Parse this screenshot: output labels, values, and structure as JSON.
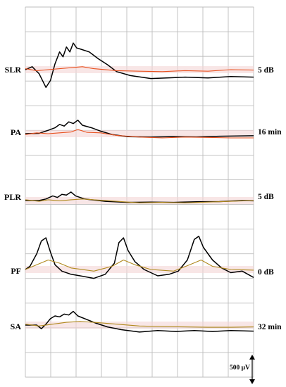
{
  "chart_data": {
    "type": "line",
    "title": "",
    "xlabel": "",
    "ylabel": "",
    "scale_bar_label": "500 μV",
    "grid": true,
    "colors": {
      "baseline_trace": "#e8501e",
      "baseline_trace_alt": "#b08a1e",
      "test_trace": "#000000",
      "grid": "#bdbdbd",
      "band": "#f3d6d6"
    },
    "panels": [
      {
        "label": "SLR",
        "condition": "5 dB",
        "baseline_color_key": "baseline_trace",
        "series": [
          {
            "role": "test",
            "points": [
              [
                0,
                0
              ],
              [
                0.03,
                0.15
              ],
              [
                0.06,
                -0.2
              ],
              [
                0.09,
                -0.9
              ],
              [
                0.11,
                -0.55
              ],
              [
                0.13,
                0.3
              ],
              [
                0.15,
                0.9
              ],
              [
                0.165,
                0.65
              ],
              [
                0.18,
                1.15
              ],
              [
                0.195,
                0.9
              ],
              [
                0.21,
                1.35
              ],
              [
                0.225,
                1.1
              ],
              [
                0.24,
                1.05
              ],
              [
                0.28,
                0.9
              ],
              [
                0.32,
                0.55
              ],
              [
                0.36,
                0.25
              ],
              [
                0.4,
                -0.1
              ],
              [
                0.46,
                -0.3
              ],
              [
                0.55,
                -0.45
              ],
              [
                0.62,
                -0.42
              ],
              [
                0.7,
                -0.38
              ],
              [
                0.8,
                -0.42
              ],
              [
                0.9,
                -0.35
              ],
              [
                1.0,
                -0.38
              ]
            ]
          },
          {
            "role": "baseline",
            "points": [
              [
                0,
                0.05
              ],
              [
                0.05,
                -0.05
              ],
              [
                0.1,
                0
              ],
              [
                0.2,
                0.1
              ],
              [
                0.25,
                0.15
              ],
              [
                0.3,
                0.05
              ],
              [
                0.4,
                -0.05
              ],
              [
                0.5,
                -0.08
              ],
              [
                0.6,
                -0.1
              ],
              [
                0.7,
                -0.05
              ],
              [
                0.8,
                -0.08
              ],
              [
                0.9,
                0
              ],
              [
                1.0,
                -0.02
              ]
            ]
          }
        ]
      },
      {
        "label": "PA",
        "condition": "16 min",
        "baseline_color_key": "baseline_trace",
        "series": [
          {
            "role": "test",
            "points": [
              [
                0,
                0
              ],
              [
                0.06,
                0.02
              ],
              [
                0.1,
                0.2
              ],
              [
                0.13,
                0.35
              ],
              [
                0.15,
                0.55
              ],
              [
                0.17,
                0.45
              ],
              [
                0.19,
                0.7
              ],
              [
                0.21,
                0.6
              ],
              [
                0.23,
                0.8
              ],
              [
                0.25,
                0.5
              ],
              [
                0.29,
                0.35
              ],
              [
                0.33,
                0.15
              ],
              [
                0.38,
                -0.05
              ],
              [
                0.45,
                -0.18
              ],
              [
                0.55,
                -0.2
              ],
              [
                0.65,
                -0.17
              ],
              [
                0.75,
                -0.19
              ],
              [
                0.85,
                -0.15
              ],
              [
                0.95,
                -0.13
              ],
              [
                1.0,
                -0.12
              ]
            ]
          },
          {
            "role": "baseline",
            "points": [
              [
                0,
                -0.05
              ],
              [
                0.05,
                0.05
              ],
              [
                0.1,
                0
              ],
              [
                0.15,
                0.05
              ],
              [
                0.2,
                0.1
              ],
              [
                0.23,
                0.25
              ],
              [
                0.27,
                0.08
              ],
              [
                0.33,
                0.05
              ],
              [
                0.4,
                -0.1
              ],
              [
                0.5,
                -0.2
              ],
              [
                0.6,
                -0.25
              ],
              [
                0.7,
                -0.2
              ],
              [
                0.8,
                -0.22
              ],
              [
                0.9,
                -0.25
              ],
              [
                1.0,
                -0.25
              ]
            ]
          }
        ]
      },
      {
        "label": "PLR",
        "condition": "5 dB",
        "baseline_color_key": "baseline_trace_alt",
        "series": [
          {
            "role": "test",
            "points": [
              [
                0,
                0
              ],
              [
                0.06,
                0
              ],
              [
                0.09,
                0.1
              ],
              [
                0.12,
                0.3
              ],
              [
                0.14,
                0.2
              ],
              [
                0.16,
                0.4
              ],
              [
                0.18,
                0.35
              ],
              [
                0.2,
                0.55
              ],
              [
                0.22,
                0.3
              ],
              [
                0.26,
                0.1
              ],
              [
                0.3,
                0.03
              ],
              [
                0.35,
                -0.05
              ],
              [
                0.45,
                -0.12
              ],
              [
                0.55,
                -0.1
              ],
              [
                0.65,
                -0.12
              ],
              [
                0.75,
                -0.08
              ],
              [
                0.85,
                -0.07
              ],
              [
                0.95,
                0
              ],
              [
                1.0,
                -0.02
              ]
            ]
          },
          {
            "role": "baseline",
            "points": [
              [
                0,
                0.05
              ],
              [
                0.06,
                -0.05
              ],
              [
                0.1,
                0.05
              ],
              [
                0.15,
                -0.02
              ],
              [
                0.2,
                0.05
              ],
              [
                0.25,
                0.1
              ],
              [
                0.3,
                0.05
              ],
              [
                0.4,
                -0.05
              ],
              [
                0.5,
                -0.15
              ],
              [
                0.6,
                -0.12
              ],
              [
                0.7,
                -0.15
              ],
              [
                0.8,
                -0.1
              ],
              [
                0.9,
                -0.05
              ],
              [
                1.0,
                0
              ]
            ]
          }
        ]
      },
      {
        "label": "PF",
        "condition": "0 dB",
        "baseline_color_key": "baseline_trace_alt",
        "series": [
          {
            "role": "test",
            "points": [
              [
                0,
                0
              ],
              [
                0.02,
                0.1
              ],
              [
                0.05,
                0.5
              ],
              [
                0.07,
                0.9
              ],
              [
                0.09,
                1.0
              ],
              [
                0.11,
                0.55
              ],
              [
                0.13,
                0.15
              ],
              [
                0.16,
                -0.05
              ],
              [
                0.2,
                -0.15
              ],
              [
                0.24,
                -0.2
              ],
              [
                0.3,
                -0.28
              ],
              [
                0.35,
                -0.15
              ],
              [
                0.39,
                0.2
              ],
              [
                0.41,
                0.85
              ],
              [
                0.43,
                1.0
              ],
              [
                0.45,
                0.6
              ],
              [
                0.48,
                0.25
              ],
              [
                0.52,
                0.0
              ],
              [
                0.58,
                -0.2
              ],
              [
                0.63,
                -0.15
              ],
              [
                0.67,
                -0.05
              ],
              [
                0.71,
                0.3
              ],
              [
                0.74,
                0.95
              ],
              [
                0.76,
                1.05
              ],
              [
                0.78,
                0.7
              ],
              [
                0.82,
                0.3
              ],
              [
                0.86,
                0.05
              ],
              [
                0.9,
                -0.1
              ],
              [
                0.95,
                -0.05
              ],
              [
                1.0,
                -0.25
              ]
            ]
          },
          {
            "role": "baseline",
            "points": [
              [
                0,
                0
              ],
              [
                0.05,
                0.15
              ],
              [
                0.1,
                0.3
              ],
              [
                0.15,
                0.2
              ],
              [
                0.2,
                0.05
              ],
              [
                0.3,
                -0.05
              ],
              [
                0.38,
                0.1
              ],
              [
                0.43,
                0.3
              ],
              [
                0.48,
                0.15
              ],
              [
                0.55,
                0.0
              ],
              [
                0.65,
                -0.05
              ],
              [
                0.72,
                0.15
              ],
              [
                0.77,
                0.3
              ],
              [
                0.82,
                0.1
              ],
              [
                0.9,
                0.0
              ],
              [
                1.0,
                -0.02
              ]
            ]
          }
        ]
      },
      {
        "label": "SA",
        "condition": "32 min",
        "baseline_color_key": "baseline_trace_alt",
        "series": [
          {
            "role": "test",
            "points": [
              [
                0,
                0
              ],
              [
                0.05,
                0.0
              ],
              [
                0.07,
                -0.2
              ],
              [
                0.09,
                0.05
              ],
              [
                0.11,
                0.35
              ],
              [
                0.13,
                0.5
              ],
              [
                0.15,
                0.45
              ],
              [
                0.17,
                0.6
              ],
              [
                0.19,
                0.55
              ],
              [
                0.21,
                0.75
              ],
              [
                0.23,
                0.5
              ],
              [
                0.27,
                0.3
              ],
              [
                0.31,
                0.1
              ],
              [
                0.36,
                -0.1
              ],
              [
                0.42,
                -0.25
              ],
              [
                0.5,
                -0.38
              ],
              [
                0.58,
                -0.3
              ],
              [
                0.66,
                -0.35
              ],
              [
                0.74,
                -0.3
              ],
              [
                0.82,
                -0.35
              ],
              [
                0.9,
                -0.3
              ],
              [
                1.0,
                -0.33
              ]
            ]
          },
          {
            "role": "baseline",
            "points": [
              [
                0,
                0.05
              ],
              [
                0.06,
                -0.05
              ],
              [
                0.12,
                0.05
              ],
              [
                0.18,
                0.15
              ],
              [
                0.24,
                0.2
              ],
              [
                0.3,
                0.15
              ],
              [
                0.4,
                0.05
              ],
              [
                0.5,
                -0.05
              ],
              [
                0.6,
                -0.08
              ],
              [
                0.7,
                -0.1
              ],
              [
                0.8,
                -0.12
              ],
              [
                0.9,
                -0.12
              ],
              [
                1.0,
                -0.1
              ]
            ]
          }
        ]
      }
    ]
  }
}
